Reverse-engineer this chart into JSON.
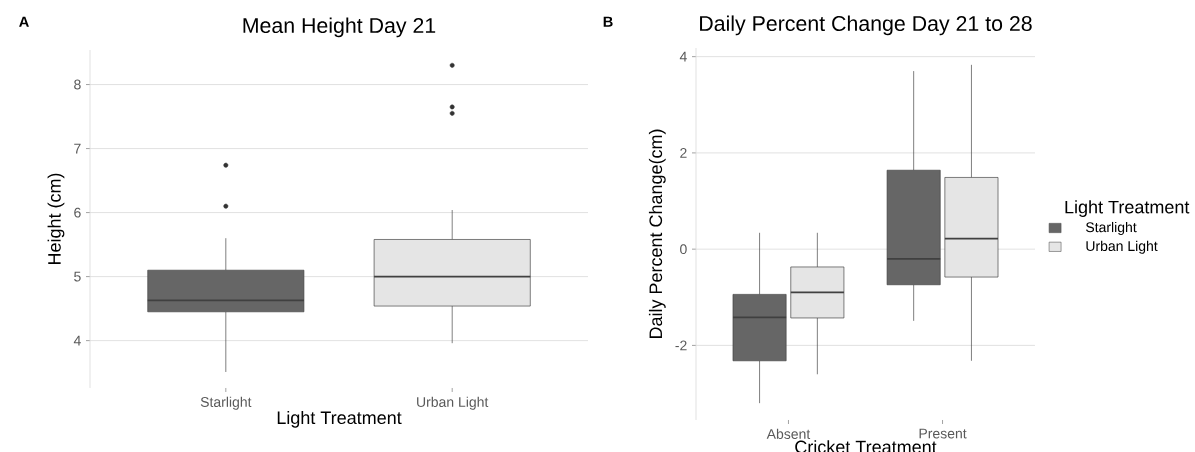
{
  "chart_data": [
    {
      "type": "box",
      "title": "Mean Height Day 21",
      "xlabel": "Light Treatment",
      "ylabel": "Height (cm)",
      "categories": [
        "Starlight",
        "Urban Light"
      ],
      "boxes": [
        {
          "low": 3.51,
          "q1": 4.45,
          "median": 4.63,
          "q3": 5.1,
          "high": 5.6,
          "outliers": [
            6.1,
            6.74
          ]
        },
        {
          "low": 3.96,
          "q1": 4.54,
          "median": 5.0,
          "q3": 5.58,
          "high": 6.04,
          "outliers": [
            7.55,
            7.65,
            8.3
          ]
        }
      ],
      "colors": [
        "#666666",
        "#e5e5e5"
      ],
      "ylim": [
        3.26,
        8.54
      ],
      "yticks": [
        4,
        5,
        6,
        7,
        8
      ],
      "grid": "y",
      "annotations": [
        "A"
      ]
    },
    {
      "type": "box",
      "title": "Daily Percent Change Day 21 to 28",
      "xlabel": "Cricket Treatment",
      "ylabel": "Daily Percent Change(cm)",
      "categories": [
        "Absent",
        "Present"
      ],
      "series": [
        {
          "name": "Starlight",
          "color": "#666666",
          "boxes": [
            {
              "low": -3.2,
              "q1": -2.32,
              "median": -1.42,
              "q3": -0.94,
              "high": 0.34
            },
            {
              "low": -1.49,
              "q1": -0.74,
              "median": -0.2,
              "q3": 1.64,
              "high": 3.7
            }
          ]
        },
        {
          "name": "Urban Light",
          "color": "#e5e5e5",
          "boxes": [
            {
              "low": -2.6,
              "q1": -1.43,
              "median": -0.9,
              "q3": -0.37,
              "high": 0.34
            },
            {
              "low": -2.32,
              "q1": -0.58,
              "median": 0.22,
              "q3": 1.49,
              "high": 3.83
            }
          ]
        }
      ],
      "legend": "right",
      "legend_title": "Light Treatment",
      "ylim": [
        -3.55,
        4.18
      ],
      "yticks": [
        -2,
        0,
        2,
        4
      ],
      "grid": "y",
      "annotations": [
        "B"
      ]
    }
  ]
}
